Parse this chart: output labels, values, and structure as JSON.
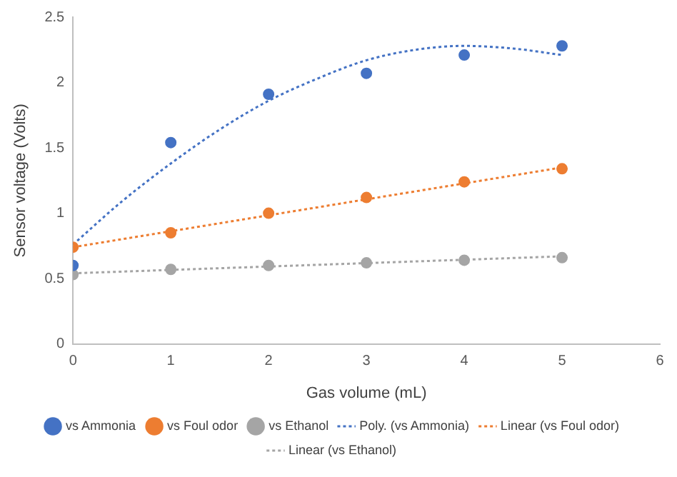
{
  "chart_data": {
    "type": "scatter",
    "xlabel": "Gas volume (mL)",
    "ylabel": "Sensor voltage (Volts)",
    "x": [
      0,
      1,
      2,
      3,
      4,
      5
    ],
    "xlim": [
      0,
      6
    ],
    "xticks": [
      0,
      1,
      2,
      3,
      4,
      5,
      6
    ],
    "ylim": [
      0,
      2.5
    ],
    "yticks": [
      0,
      0.5,
      1,
      1.5,
      2,
      2.5
    ],
    "grid": false,
    "legend": "bottom",
    "series": [
      {
        "name": "vs Ammonia",
        "color": "#4472c4",
        "marker": "circle",
        "values": [
          0.6,
          1.54,
          1.91,
          2.07,
          2.21,
          2.28
        ]
      },
      {
        "name": "vs Foul odor",
        "color": "#ed7d31",
        "marker": "circle",
        "values": [
          0.74,
          0.85,
          1.0,
          1.12,
          1.24,
          1.34
        ]
      },
      {
        "name": "vs Ethanol",
        "color": "#a5a5a5",
        "marker": "circle",
        "values": [
          0.53,
          0.57,
          0.6,
          0.62,
          0.64,
          0.66
        ]
      },
      {
        "name": "Poly. (vs Ammonia)",
        "type": "line",
        "color": "#4472c4",
        "marker": "none",
        "line_style": "dotted",
        "x": [
          0,
          0.5,
          1,
          1.5,
          2,
          2.5,
          3,
          3.5,
          4,
          4.5,
          5
        ],
        "values": [
          0.76,
          1.09,
          1.38,
          1.64,
          1.86,
          2.03,
          2.17,
          2.25,
          2.28,
          2.26,
          2.21
        ]
      },
      {
        "name": "Linear (vs Foul odor)",
        "type": "line",
        "color": "#ed7d31",
        "marker": "none",
        "line_style": "dotted",
        "x": [
          0,
          5
        ],
        "values": [
          0.74,
          1.35
        ]
      },
      {
        "name": "Linear (vs Ethanol)",
        "type": "line",
        "color": "#a5a5a5",
        "marker": "none",
        "line_style": "dotted",
        "x": [
          0,
          5
        ],
        "values": [
          0.54,
          0.67
        ]
      }
    ]
  }
}
